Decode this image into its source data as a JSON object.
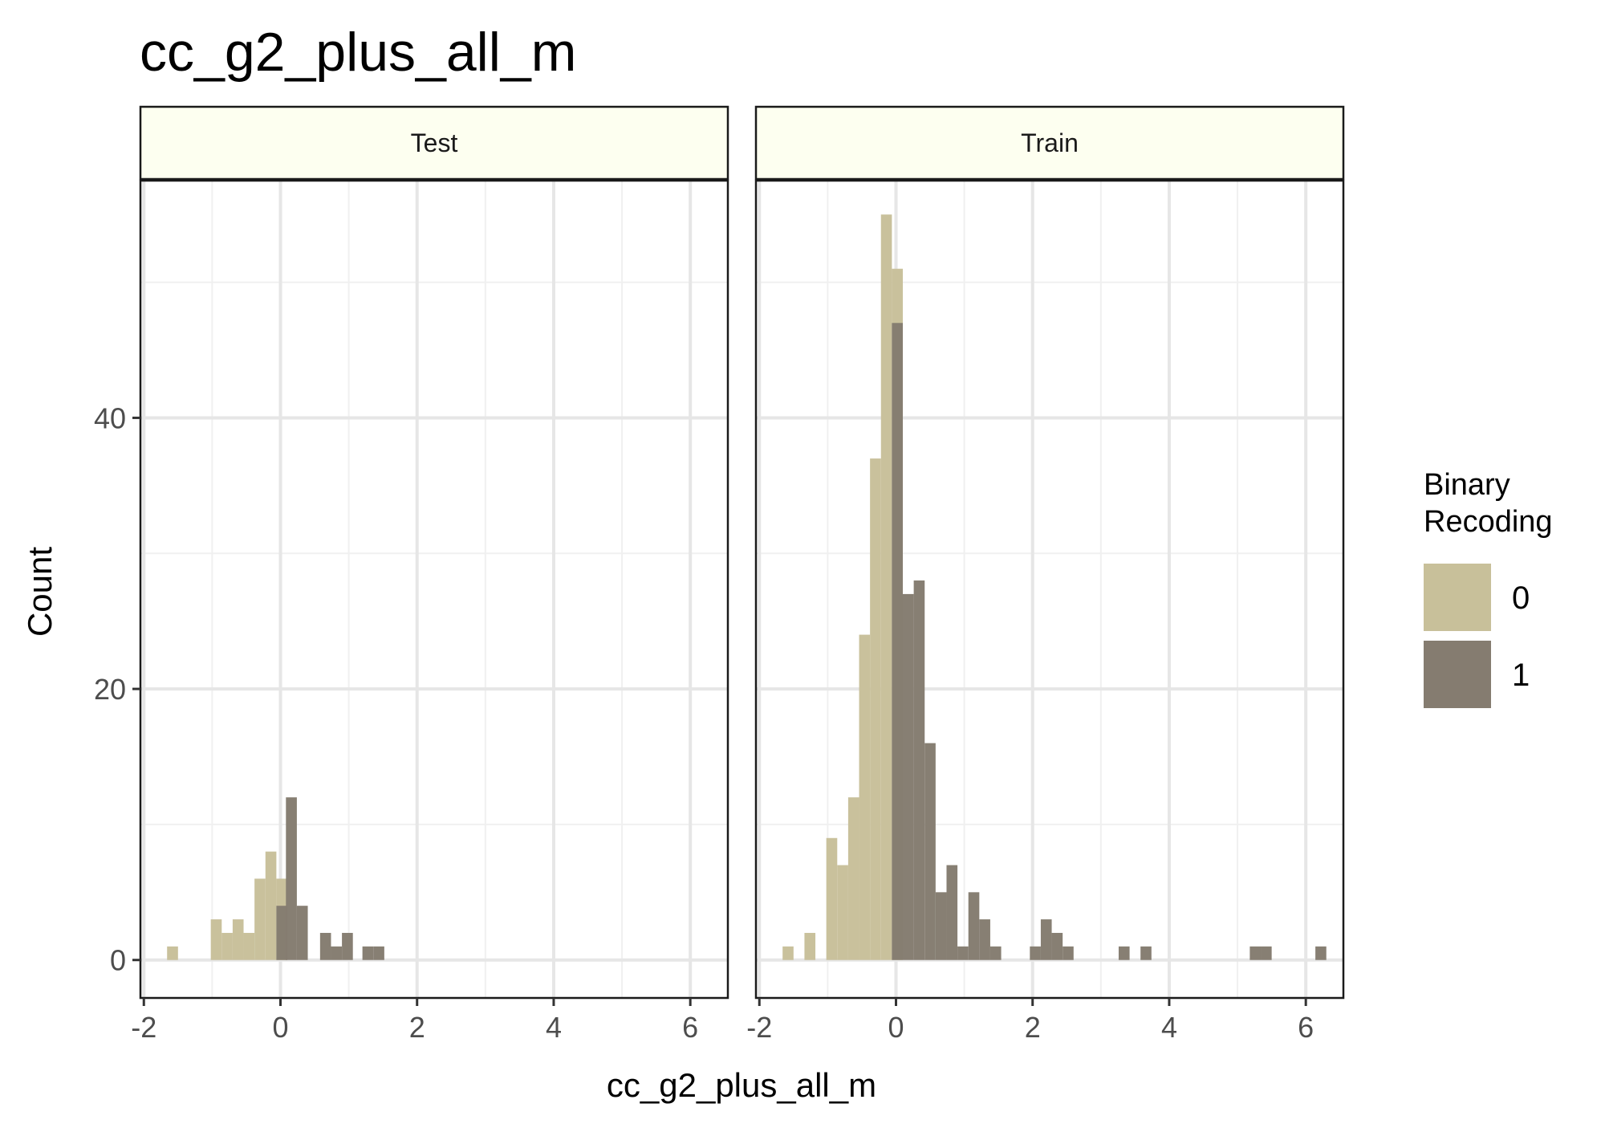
{
  "chart_data": {
    "type": "bar",
    "subtype": "faceted histogram",
    "title": "cc_g2_plus_all_m",
    "xlabel": "cc_g2_plus_all_m",
    "ylabel": "Count",
    "xlim": [
      -2.05,
      6.55
    ],
    "ylim": [
      -2.8,
      57.5
    ],
    "x_ticks": [
      -2,
      0,
      2,
      4,
      6
    ],
    "y_ticks": [
      0,
      20,
      40
    ],
    "grid": true,
    "bin_width": 0.16,
    "legend": {
      "title": "Binary\nRecoding",
      "position": "right",
      "items": [
        {
          "label": "0",
          "color": "#c8c09a"
        },
        {
          "label": "1",
          "color": "#857c70"
        }
      ]
    },
    "colors": {
      "strip_fill": "#fdfff0",
      "gridline": "#e6e6e6",
      "panel_border": "#1a1a1a",
      "series_0": "#c8c09a",
      "series_1": "#857c70"
    },
    "panels": [
      {
        "label": "Test",
        "series": [
          {
            "name": "0",
            "bins": [
              {
                "x": -1.58,
                "count": 1
              },
              {
                "x": -0.94,
                "count": 3
              },
              {
                "x": -0.78,
                "count": 2
              },
              {
                "x": -0.62,
                "count": 3
              },
              {
                "x": -0.46,
                "count": 2
              },
              {
                "x": -0.3,
                "count": 6
              },
              {
                "x": -0.14,
                "count": 8
              },
              {
                "x": 0.02,
                "count": 6
              }
            ]
          },
          {
            "name": "1",
            "bins": [
              {
                "x": 0.02,
                "count": 4
              },
              {
                "x": 0.16,
                "count": 12
              },
              {
                "x": 0.32,
                "count": 4
              },
              {
                "x": 0.66,
                "count": 2
              },
              {
                "x": 0.82,
                "count": 1
              },
              {
                "x": 0.98,
                "count": 2
              },
              {
                "x": 1.28,
                "count": 1
              },
              {
                "x": 1.44,
                "count": 1
              }
            ]
          }
        ]
      },
      {
        "label": "Train",
        "series": [
          {
            "name": "0",
            "bins": [
              {
                "x": -1.58,
                "count": 1
              },
              {
                "x": -1.26,
                "count": 2
              },
              {
                "x": -0.94,
                "count": 9
              },
              {
                "x": -0.78,
                "count": 7
              },
              {
                "x": -0.62,
                "count": 12
              },
              {
                "x": -0.46,
                "count": 24
              },
              {
                "x": -0.3,
                "count": 37
              },
              {
                "x": -0.14,
                "count": 55
              },
              {
                "x": 0.02,
                "count": 51
              }
            ]
          },
          {
            "name": "1",
            "bins": [
              {
                "x": 0.02,
                "count": 47
              },
              {
                "x": 0.18,
                "count": 27
              },
              {
                "x": 0.34,
                "count": 28
              },
              {
                "x": 0.5,
                "count": 16
              },
              {
                "x": 0.66,
                "count": 5
              },
              {
                "x": 0.82,
                "count": 7
              },
              {
                "x": 0.98,
                "count": 1
              },
              {
                "x": 1.14,
                "count": 5
              },
              {
                "x": 1.3,
                "count": 3
              },
              {
                "x": 1.46,
                "count": 1
              },
              {
                "x": 2.04,
                "count": 1
              },
              {
                "x": 2.2,
                "count": 3
              },
              {
                "x": 2.36,
                "count": 2
              },
              {
                "x": 2.52,
                "count": 1
              },
              {
                "x": 3.34,
                "count": 1
              },
              {
                "x": 3.66,
                "count": 1
              },
              {
                "x": 5.26,
                "count": 1
              },
              {
                "x": 5.42,
                "count": 1
              },
              {
                "x": 6.22,
                "count": 1
              }
            ]
          }
        ]
      }
    ]
  }
}
